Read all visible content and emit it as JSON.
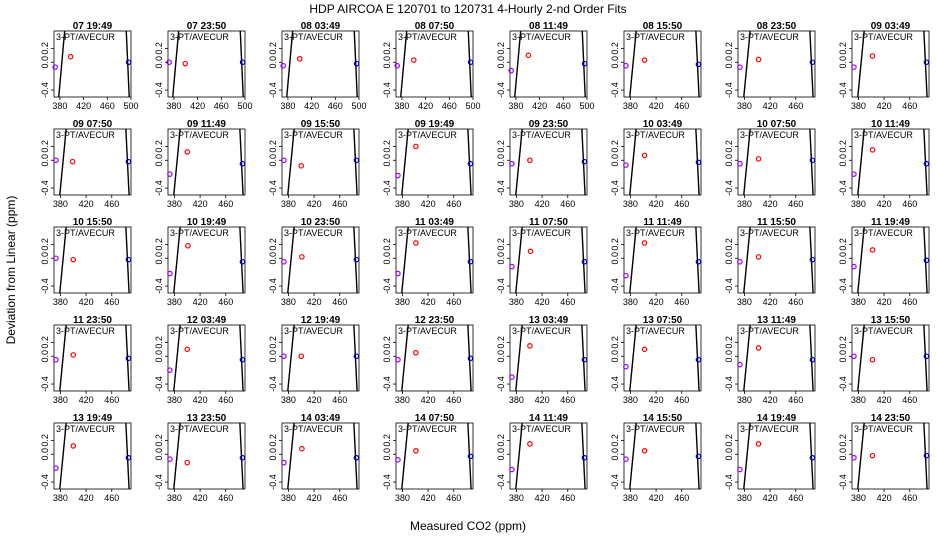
{
  "chart_data": {
    "type": "scatter",
    "title": "HDP   AIRCOA E   120701 to 120731   4-Hourly 2-nd Order Fits",
    "xlabel": "Measured CO2 (ppm)",
    "ylabel": "Deviation from Linear (ppm)",
    "ylim": [
      -0.5,
      0.45
    ],
    "yticks": [
      "-0.4",
      "0.0",
      "0.2"
    ],
    "annotation": "3-PT/AVECUR",
    "colors": {
      "low": "#9900ff",
      "mid": "#ff0000",
      "high": "#0000cc",
      "curve": "#000000"
    },
    "xtick_sets": {
      "wide": [
        "380",
        "420",
        "460",
        "500"
      ],
      "narrow": [
        "380",
        "420",
        "460"
      ]
    },
    "panels": [
      {
        "label": "07 19:49",
        "xlim": [
          370,
          500
        ],
        "xticks": "wide",
        "points": [
          [
            372,
            -0.07
          ],
          [
            398,
            0.08
          ],
          [
            496,
            0.0
          ]
        ]
      },
      {
        "label": "07 23:50",
        "xlim": [
          370,
          500
        ],
        "xticks": "wide",
        "points": [
          [
            372,
            0.0
          ],
          [
            399,
            -0.02
          ],
          [
            496,
            0.0
          ]
        ]
      },
      {
        "label": "08 03:49",
        "xlim": [
          370,
          500
        ],
        "xticks": "wide",
        "points": [
          [
            372,
            -0.05
          ],
          [
            400,
            0.05
          ],
          [
            496,
            -0.02
          ]
        ]
      },
      {
        "label": "08 07:50",
        "xlim": [
          370,
          500
        ],
        "xticks": "wide",
        "points": [
          [
            372,
            -0.05
          ],
          [
            400,
            0.03
          ],
          [
            496,
            0.0
          ]
        ]
      },
      {
        "label": "08 11:49",
        "xlim": [
          370,
          500
        ],
        "xticks": "wide",
        "points": [
          [
            372,
            -0.12
          ],
          [
            401,
            0.1
          ],
          [
            496,
            -0.02
          ]
        ]
      },
      {
        "label": "08 15:50",
        "xlim": [
          370,
          490
        ],
        "xticks": "narrow",
        "points": [
          [
            373,
            -0.05
          ],
          [
            402,
            0.03
          ],
          [
            486,
            -0.03
          ]
        ]
      },
      {
        "label": "08 23:50",
        "xlim": [
          370,
          490
        ],
        "xticks": "narrow",
        "points": [
          [
            373,
            -0.07
          ],
          [
            402,
            0.04
          ],
          [
            486,
            0.0
          ]
        ]
      },
      {
        "label": "09 03:49",
        "xlim": [
          370,
          490
        ],
        "xticks": "narrow",
        "points": [
          [
            373,
            -0.07
          ],
          [
            402,
            0.09
          ],
          [
            486,
            0.0
          ]
        ]
      },
      {
        "label": "09 07:50",
        "xlim": [
          370,
          490
        ],
        "xticks": "narrow",
        "points": [
          [
            373,
            0.0
          ],
          [
            399,
            -0.02
          ],
          [
            486,
            -0.02
          ]
        ]
      },
      {
        "label": "09 11:49",
        "xlim": [
          370,
          490
        ],
        "xticks": "narrow",
        "points": [
          [
            373,
            -0.2
          ],
          [
            400,
            0.12
          ],
          [
            486,
            -0.05
          ]
        ]
      },
      {
        "label": "09 15:50",
        "xlim": [
          370,
          490
        ],
        "xticks": "narrow",
        "points": [
          [
            373,
            0.0
          ],
          [
            400,
            -0.08
          ],
          [
            486,
            0.0
          ]
        ]
      },
      {
        "label": "09 19:49",
        "xlim": [
          370,
          490
        ],
        "xticks": "narrow",
        "points": [
          [
            373,
            -0.22
          ],
          [
            401,
            0.2
          ],
          [
            486,
            -0.05
          ]
        ]
      },
      {
        "label": "09 23:50",
        "xlim": [
          370,
          490
        ],
        "xticks": "narrow",
        "points": [
          [
            373,
            -0.05
          ],
          [
            401,
            0.0
          ],
          [
            486,
            -0.02
          ]
        ]
      },
      {
        "label": "10 03:49",
        "xlim": [
          370,
          490
        ],
        "xticks": "narrow",
        "points": [
          [
            373,
            -0.07
          ],
          [
            402,
            0.07
          ],
          [
            486,
            -0.03
          ]
        ]
      },
      {
        "label": "10 07:50",
        "xlim": [
          370,
          490
        ],
        "xticks": "narrow",
        "points": [
          [
            373,
            -0.05
          ],
          [
            402,
            0.02
          ],
          [
            486,
            0.0
          ]
        ]
      },
      {
        "label": "10 11:49",
        "xlim": [
          370,
          490
        ],
        "xticks": "narrow",
        "points": [
          [
            373,
            -0.2
          ],
          [
            402,
            0.15
          ],
          [
            486,
            -0.05
          ]
        ]
      },
      {
        "label": "10 15:50",
        "xlim": [
          370,
          490
        ],
        "xticks": "narrow",
        "points": [
          [
            373,
            0.0
          ],
          [
            400,
            -0.02
          ],
          [
            486,
            -0.02
          ]
        ]
      },
      {
        "label": "10 19:49",
        "xlim": [
          370,
          490
        ],
        "xticks": "narrow",
        "points": [
          [
            373,
            -0.22
          ],
          [
            401,
            0.18
          ],
          [
            486,
            -0.05
          ]
        ]
      },
      {
        "label": "10 23:50",
        "xlim": [
          370,
          490
        ],
        "xticks": "narrow",
        "points": [
          [
            373,
            -0.05
          ],
          [
            401,
            0.02
          ],
          [
            486,
            -0.02
          ]
        ]
      },
      {
        "label": "11 03:49",
        "xlim": [
          370,
          490
        ],
        "xticks": "narrow",
        "points": [
          [
            373,
            -0.22
          ],
          [
            401,
            0.22
          ],
          [
            486,
            -0.05
          ]
        ]
      },
      {
        "label": "11 07:50",
        "xlim": [
          370,
          490
        ],
        "xticks": "narrow",
        "points": [
          [
            373,
            -0.12
          ],
          [
            402,
            0.1
          ],
          [
            486,
            -0.05
          ]
        ]
      },
      {
        "label": "11 11:49",
        "xlim": [
          370,
          490
        ],
        "xticks": "narrow",
        "points": [
          [
            373,
            -0.25
          ],
          [
            402,
            0.22
          ],
          [
            486,
            -0.05
          ]
        ]
      },
      {
        "label": "11 15:50",
        "xlim": [
          370,
          490
        ],
        "xticks": "narrow",
        "points": [
          [
            373,
            -0.05
          ],
          [
            402,
            0.02
          ],
          [
            486,
            -0.02
          ]
        ]
      },
      {
        "label": "11 19:49",
        "xlim": [
          370,
          490
        ],
        "xticks": "narrow",
        "points": [
          [
            373,
            -0.12
          ],
          [
            402,
            0.12
          ],
          [
            486,
            -0.03
          ]
        ]
      },
      {
        "label": "11 23:50",
        "xlim": [
          370,
          490
        ],
        "xticks": "narrow",
        "points": [
          [
            373,
            -0.05
          ],
          [
            400,
            0.02
          ],
          [
            486,
            -0.03
          ]
        ]
      },
      {
        "label": "12 03:49",
        "xlim": [
          370,
          490
        ],
        "xticks": "narrow",
        "points": [
          [
            373,
            -0.2
          ],
          [
            400,
            0.1
          ],
          [
            486,
            -0.05
          ]
        ]
      },
      {
        "label": "12 19:49",
        "xlim": [
          370,
          490
        ],
        "xticks": "narrow",
        "points": [
          [
            373,
            0.0
          ],
          [
            400,
            0.0
          ],
          [
            486,
            0.0
          ]
        ]
      },
      {
        "label": "12 23:50",
        "xlim": [
          370,
          490
        ],
        "xticks": "narrow",
        "points": [
          [
            373,
            -0.05
          ],
          [
            401,
            0.05
          ],
          [
            486,
            -0.03
          ]
        ]
      },
      {
        "label": "13 03:49",
        "xlim": [
          370,
          490
        ],
        "xticks": "narrow",
        "points": [
          [
            373,
            -0.3
          ],
          [
            401,
            0.15
          ],
          [
            486,
            -0.05
          ]
        ]
      },
      {
        "label": "13 07:50",
        "xlim": [
          370,
          490
        ],
        "xticks": "narrow",
        "points": [
          [
            373,
            -0.15
          ],
          [
            402,
            0.1
          ],
          [
            486,
            -0.05
          ]
        ]
      },
      {
        "label": "13 11:49",
        "xlim": [
          370,
          490
        ],
        "xticks": "narrow",
        "points": [
          [
            373,
            -0.12
          ],
          [
            402,
            0.12
          ],
          [
            486,
            -0.05
          ]
        ]
      },
      {
        "label": "13 15:50",
        "xlim": [
          370,
          490
        ],
        "xticks": "narrow",
        "points": [
          [
            373,
            0.0
          ],
          [
            402,
            -0.05
          ],
          [
            486,
            0.0
          ]
        ]
      },
      {
        "label": "13 19:49",
        "xlim": [
          370,
          490
        ],
        "xticks": "narrow",
        "points": [
          [
            373,
            -0.2
          ],
          [
            400,
            0.12
          ],
          [
            486,
            -0.05
          ]
        ]
      },
      {
        "label": "13 23:50",
        "xlim": [
          370,
          490
        ],
        "xticks": "narrow",
        "points": [
          [
            373,
            -0.07
          ],
          [
            400,
            -0.12
          ],
          [
            486,
            -0.05
          ]
        ]
      },
      {
        "label": "14 03:49",
        "xlim": [
          370,
          490
        ],
        "xticks": "narrow",
        "points": [
          [
            373,
            -0.12
          ],
          [
            401,
            0.08
          ],
          [
            486,
            -0.05
          ]
        ]
      },
      {
        "label": "14 07:50",
        "xlim": [
          370,
          490
        ],
        "xticks": "narrow",
        "points": [
          [
            373,
            -0.08
          ],
          [
            401,
            0.05
          ],
          [
            486,
            -0.03
          ]
        ]
      },
      {
        "label": "14 11:49",
        "xlim": [
          370,
          490
        ],
        "xticks": "narrow",
        "points": [
          [
            373,
            -0.22
          ],
          [
            401,
            0.15
          ],
          [
            486,
            -0.05
          ]
        ]
      },
      {
        "label": "14 15:50",
        "xlim": [
          370,
          490
        ],
        "xticks": "narrow",
        "points": [
          [
            373,
            -0.07
          ],
          [
            402,
            0.05
          ],
          [
            486,
            -0.03
          ]
        ]
      },
      {
        "label": "14 19:49",
        "xlim": [
          370,
          490
        ],
        "xticks": "narrow",
        "points": [
          [
            373,
            -0.22
          ],
          [
            402,
            0.15
          ],
          [
            486,
            -0.05
          ]
        ]
      },
      {
        "label": "14 23:50",
        "xlim": [
          370,
          490
        ],
        "xticks": "narrow",
        "points": [
          [
            373,
            -0.05
          ],
          [
            402,
            -0.02
          ],
          [
            486,
            -0.02
          ]
        ]
      }
    ]
  }
}
